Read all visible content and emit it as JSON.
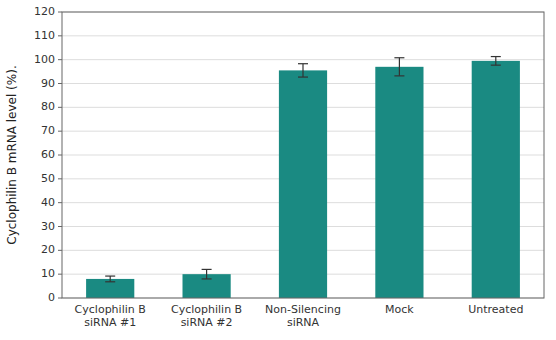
{
  "chart_data": {
    "type": "bar",
    "categories": [
      "Cyclophilin B\nsiRNA #1",
      "Cyclophilin B\nsiRNA #2",
      "Non-Silencing\nsiRNA",
      "Mock",
      "Untreated"
    ],
    "values": [
      8.0,
      10.0,
      95.5,
      97.0,
      99.5
    ],
    "errors": [
      1.2,
      2.0,
      2.8,
      3.8,
      1.8
    ],
    "color": "#1a8a82",
    "ylabel": "Cyclophilin B mRNA level (%).",
    "ylim": [
      0,
      120
    ],
    "yticks": [
      0,
      10,
      20,
      30,
      40,
      50,
      60,
      70,
      80,
      90,
      100,
      110,
      120
    ],
    "grid": true
  }
}
